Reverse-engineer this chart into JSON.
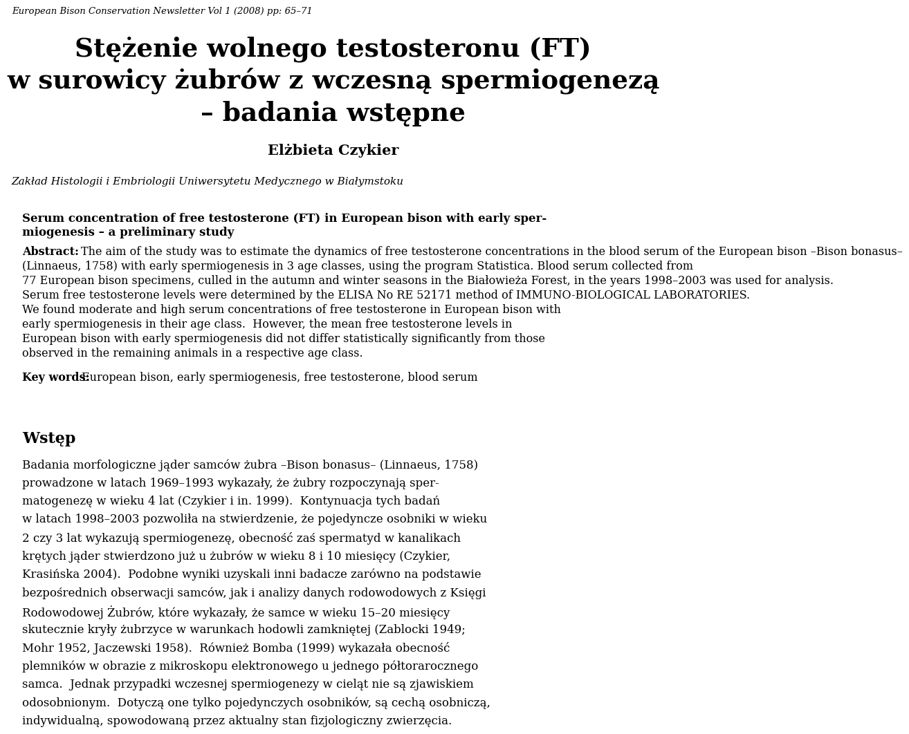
{
  "background_color": "#ffffff",
  "header_italic": "European Bison Conservation Newsletter Vol 1 (2008) pp: 65–71",
  "title_line1": "Stężenie wolnego testosteronu (FT)",
  "title_line2": "w surowicy żubrów z wczesną spermiogenezą",
  "title_line3": "– badania wstępne",
  "author": "Elżbieta Czykier",
  "affiliation": "Zakład Histologii i Embriologii Uniwersytetu Medycznego w Białymstoku",
  "en_title_1": "Serum concentration of free testosterone (FT) in European bison with early sper-",
  "en_title_2": "miogenesis – a preliminary study",
  "abstract_lines": [
    "The aim of the study was to estimate the dynamics of free testosterone concentrations in the blood serum of the European bison Bison bonasus",
    "(Linnaeus, 1758) with early spermiogenesis in 3 age classes, using the program Statistica. Blood serum collected from",
    "77 European bison specimens, culled in the autumn and winter seasons in the Białowieża Forest, in the years 1998–2003 was used for analysis.",
    "Serum free testosterone levels were determined by the ELISA No RE 52171 method of IMMUNO-BIOLOGICAL LABORATORIES.",
    "We found moderate and high serum concentrations of free testosterone in European bison with",
    "early spermiogenesis in their age class.  However, the mean free testosterone levels in",
    "European bison with early spermiogenesis did not differ statistically significantly from those",
    "observed in the remaining animals in a respective age class."
  ],
  "keywords_text": "European bison, early spermiogenesis, free testosterone, blood serum",
  "section_title": "Wstęp",
  "body_lines": [
    "Badania morfologiczne jąder samców żubra Bison bonasus (Linnaeus, 1758)",
    "prowadzone w latach 1969–1993 wykazały, że żubry rozpoczynają sper-",
    "matogenezę w wieku 4 lat (Czykier i in. 1999).  Kontynuacja tych badań",
    "w latach 1998–2003 pozwoliła na stwierdzenie, że pojedyncze osobniki w wieku",
    "2 czy 3 lat wykazują spermiogenezę, obecność zaś spermatyd w kanalikach",
    "krętych jąder stwierdzono już u żubrów w wieku 8 i 10 miesięcy (Czykier,",
    "Krasińska 2004).  Podobne wyniki uzyskali inni badacze zarówno na podstawie",
    "bezpośrednich obserwacji samców, jak i analizy danych rodowodowych z Księgi",
    "Rodowodowej Żubrów, które wykazały, że samce w wieku 15–20 miesięcy",
    "skutecznie kryły żubrzyce w warunkach hodowli zamkniętej (Zablocki 1949;",
    "Mohr 1952, Jaczewski 1958).  Również Bomba (1999) wykazała obecność",
    "plemników w obrazie z mikroskopu elektronowego u jednego półtorarocznego",
    "samca.  Jednak przypadki wczesnej spermiogenezy w cieląt nie są zjawiskiem",
    "odosobnionym.  Dotyczą one tylko pojedynczych osobników, są cechą osobniczą,",
    "indywidualną, spowodowaną przez aktualny stan fizjologiczny zwierzęcia."
  ]
}
